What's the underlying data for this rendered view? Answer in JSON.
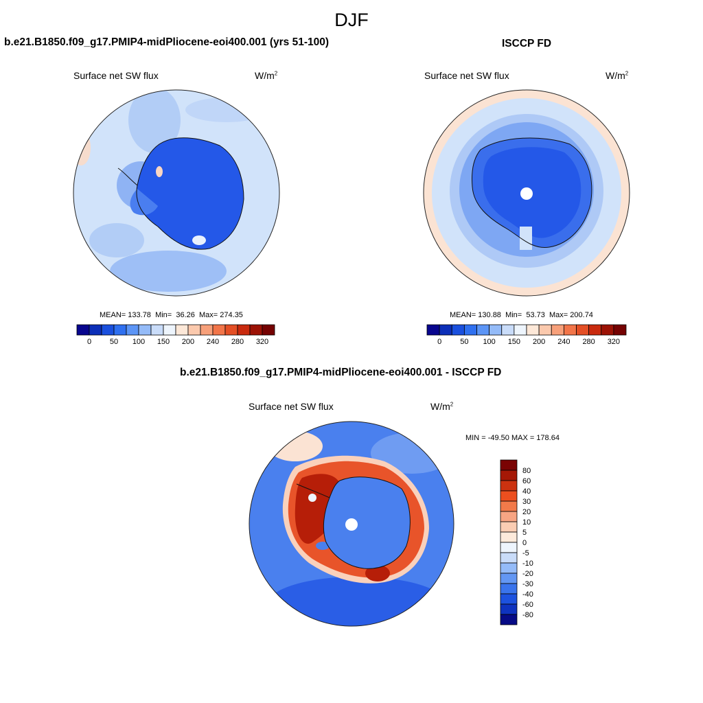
{
  "main_title": "DJF",
  "panels": [
    {
      "title": "b.e21.B1850.f09_g17.PMIP4-midPliocene-eoi400.001 (yrs 51-100)",
      "variable": "Surface net SW flux",
      "units_base": "W/m",
      "units_sup": "2",
      "stats": {
        "mean_label": "MEAN=",
        "mean": "133.78",
        "min_label": "Min=",
        "min": "36.26",
        "max_label": "Max=",
        "max": "274.35"
      }
    },
    {
      "title": "ISCCP FD",
      "variable": "Surface net SW flux",
      "units_base": "W/m",
      "units_sup": "2",
      "stats": {
        "mean_label": "MEAN=",
        "mean": "130.88",
        "min_label": "Min=",
        "min": "53.73",
        "max_label": "Max=",
        "max": "200.74"
      }
    },
    {
      "title": "b.e21.B1850.f09_g17.PMIP4-midPliocene-eoi400.001 - ISCCP FD",
      "variable": "Surface net SW flux",
      "units_base": "W/m",
      "units_sup": "2",
      "stats_text": "MIN = -49.50 MAX = 178.64"
    }
  ],
  "chart_data": [
    {
      "type": "heatmap",
      "projection": "south-polar-stereographic",
      "title": "b.e21.B1850.f09_g17.PMIP4-midPliocene-eoi400.001 (yrs 51-100)",
      "variable": "Surface net SW flux",
      "units": "W/m2",
      "mean": 133.78,
      "min": 36.26,
      "max": 274.35,
      "colorbar": {
        "orientation": "horizontal",
        "tick_labels": [
          "0",
          "50",
          "100",
          "150",
          "200",
          "240",
          "280",
          "320"
        ],
        "colors": [
          "#08068e",
          "#0c2fb8",
          "#1a50de",
          "#2f70f0",
          "#5c95f6",
          "#94bbf8",
          "#c9dcf9",
          "#eef5fd",
          "#fde8d8",
          "#fbc9ad",
          "#f7a07a",
          "#f27549",
          "#e44f25",
          "#c92a0e",
          "#9c1205",
          "#750202"
        ]
      }
    },
    {
      "type": "heatmap",
      "projection": "south-polar-stereographic",
      "title": "ISCCP FD",
      "variable": "Surface net SW flux",
      "units": "W/m2",
      "mean": 130.88,
      "min": 53.73,
      "max": 200.74,
      "colorbar": {
        "orientation": "horizontal",
        "tick_labels": [
          "0",
          "50",
          "100",
          "150",
          "200",
          "240",
          "280",
          "320"
        ],
        "colors": [
          "#08068e",
          "#0c2fb8",
          "#1a50de",
          "#2f70f0",
          "#5c95f6",
          "#94bbf8",
          "#c9dcf9",
          "#eef5fd",
          "#fde8d8",
          "#fbc9ad",
          "#f7a07a",
          "#f27549",
          "#e44f25",
          "#c92a0e",
          "#9c1205",
          "#750202"
        ]
      }
    },
    {
      "type": "heatmap",
      "projection": "south-polar-stereographic",
      "title": "b.e21.B1850.f09_g17.PMIP4-midPliocene-eoi400.001 - ISCCP FD",
      "variable": "Surface net SW flux",
      "units": "W/m2",
      "min": -49.5,
      "max": 178.64,
      "colorbar": {
        "orientation": "vertical",
        "tick_labels": [
          "80",
          "60",
          "40",
          "30",
          "20",
          "10",
          "5",
          "0",
          "-5",
          "-10",
          "-20",
          "-30",
          "-40",
          "-60",
          "-80"
        ],
        "colors": [
          "#7a0303",
          "#a51806",
          "#cc3210",
          "#ec4f1f",
          "#f27a4a",
          "#f8a583",
          "#fbcdb3",
          "#fdeadb",
          "#eef5fd",
          "#c9dcf9",
          "#94bbf8",
          "#6397f3",
          "#3a74ec",
          "#1d52df",
          "#0f33bf",
          "#070b86"
        ]
      }
    }
  ]
}
